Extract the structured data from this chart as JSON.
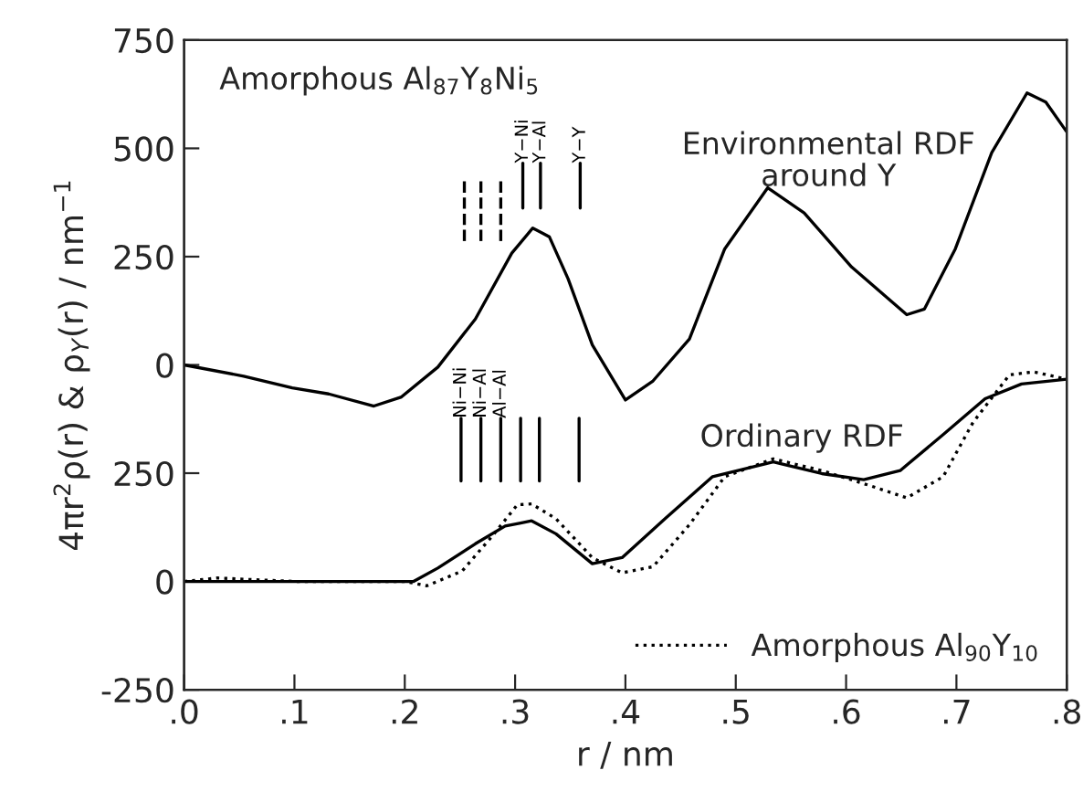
{
  "chart_data": {
    "type": "line",
    "xlabel": "r / nm",
    "ylabel": "4πr$^{2}$ρ(r) & ρ$_{Y}$(r) / nm$^{−1}$",
    "xlim": [
      0,
      0.8
    ],
    "ylim": [
      -250,
      1250
    ],
    "y2lim": [
      -750,
      750
    ],
    "xticks": [
      {
        "value": 0,
        "label": ".0"
      },
      {
        "value": 0.1,
        "label": ".1"
      },
      {
        "value": 0.2,
        "label": ".2"
      },
      {
        "value": 0.3,
        "label": ".3"
      },
      {
        "value": 0.4,
        "label": ".4"
      },
      {
        "value": 0.5,
        "label": ".5"
      },
      {
        "value": 0.6,
        "label": ".6"
      },
      {
        "value": 0.7,
        "label": ".7"
      },
      {
        "value": 0.8,
        "label": ".8"
      }
    ],
    "yticks": [
      -250,
      0,
      250
    ],
    "y2ticks": [
      0,
      250,
      500,
      750
    ],
    "grid": false,
    "legend": "bottom right",
    "series": [
      {
        "color": "#000000",
        "axis": "y2",
        "line_style": "solid",
        "x": [
          0,
          0.054,
          0.098,
          0.131,
          0.172,
          0.197,
          0.23,
          0.264,
          0.297,
          0.316,
          0.331,
          0.348,
          0.37,
          0.4,
          0.425,
          0.458,
          0.49,
          0.529,
          0.562,
          0.605,
          0.655,
          0.671,
          0.699,
          0.732,
          0.764,
          0.781,
          0.8
        ],
        "values": [
          0,
          -26,
          -53,
          -67,
          -95,
          -74,
          -5,
          106,
          258,
          316,
          296,
          199,
          46,
          -81,
          -37,
          60,
          268,
          409,
          351,
          226,
          116,
          129,
          268,
          490,
          628,
          607,
          538
        ]
      },
      {
        "color": "#000000",
        "line_style": "solid",
        "x": [
          0,
          0.109,
          0.208,
          0.23,
          0.264,
          0.291,
          0.305,
          0.315,
          0.337,
          0.37,
          0.397,
          0.436,
          0.479,
          0.534,
          0.578,
          0.616,
          0.649,
          0.688,
          0.726,
          0.759,
          0.8
        ],
        "values": [
          0,
          0,
          0,
          31,
          87,
          128,
          135,
          140,
          110,
          41,
          55,
          145,
          242,
          276,
          249,
          235,
          256,
          339,
          422,
          456,
          467
        ]
      },
      {
        "name": "Amorphous Al$_{90}$Y$_{10}$",
        "color": "#000000",
        "line_style": "dotted",
        "x": [
          0,
          0.03,
          0.1,
          0.2,
          0.22,
          0.252,
          0.28,
          0.302,
          0.315,
          0.337,
          0.37,
          0.397,
          0.425,
          0.458,
          0.49,
          0.534,
          0.578,
          0.622,
          0.655,
          0.688,
          0.715,
          0.748,
          0.77,
          0.8
        ],
        "values": [
          0,
          8,
          0,
          0,
          -10,
          24,
          107,
          177,
          179,
          145,
          55,
          20,
          34,
          131,
          242,
          283,
          256,
          221,
          193,
          242,
          367,
          477,
          484,
          467
        ]
      },
      {
        "color": "#000000",
        "axis": "y2",
        "line_style": "dashed",
        "x": [
          0.254,
          0.254
        ],
        "values": [
          286,
          425
        ]
      },
      {
        "color": "#000000",
        "axis": "y2",
        "line_style": "dashed",
        "x": [
          0.269,
          0.269
        ],
        "values": [
          286,
          425
        ]
      },
      {
        "color": "#000000",
        "axis": "y2",
        "line_style": "dashed",
        "x": [
          0.287,
          0.287
        ],
        "values": [
          286,
          425
        ]
      },
      {
        "name": "Y−Ni",
        "color": "#000000",
        "axis": "y2",
        "line_style": "solid",
        "x": [
          0.307,
          0.307
        ],
        "values": [
          362,
          466
        ]
      },
      {
        "name": "Y−Al",
        "color": "#000000",
        "axis": "y2",
        "line_style": "solid",
        "x": [
          0.323,
          0.323
        ],
        "values": [
          362,
          466
        ]
      },
      {
        "name": "Y−Y",
        "color": "#000000",
        "axis": "y2",
        "line_style": "solid",
        "x": [
          0.359,
          0.359
        ],
        "values": [
          362,
          466
        ]
      },
      {
        "name": "Ni−Ni",
        "color": "#000000",
        "line_style": "solid",
        "x": [
          0.251,
          0.251
        ],
        "values": [
          232,
          377
        ]
      },
      {
        "name": "Ni−Al",
        "color": "#000000",
        "line_style": "solid",
        "x": [
          0.269,
          0.269
        ],
        "values": [
          232,
          377
        ]
      },
      {
        "name": "Al−Al",
        "color": "#000000",
        "line_style": "solid",
        "x": [
          0.287,
          0.287
        ],
        "values": [
          232,
          377
        ]
      },
      {
        "color": "#000000",
        "line_style": "solid",
        "x": [
          0.305,
          0.305
        ],
        "values": [
          232,
          377
        ]
      },
      {
        "color": "#000000",
        "line_style": "solid",
        "x": [
          0.322,
          0.322
        ],
        "values": [
          232,
          377
        ]
      },
      {
        "color": "#000000",
        "line_style": "solid",
        "x": [
          0.358,
          0.358
        ],
        "values": [
          232,
          377
        ]
      }
    ],
    "annotations": [
      "Amorphous Al$_{87}$Y$_{8}$Ni$_{5}$",
      "Environmental RDF\naround Y",
      "Ordinary RDF"
    ]
  }
}
